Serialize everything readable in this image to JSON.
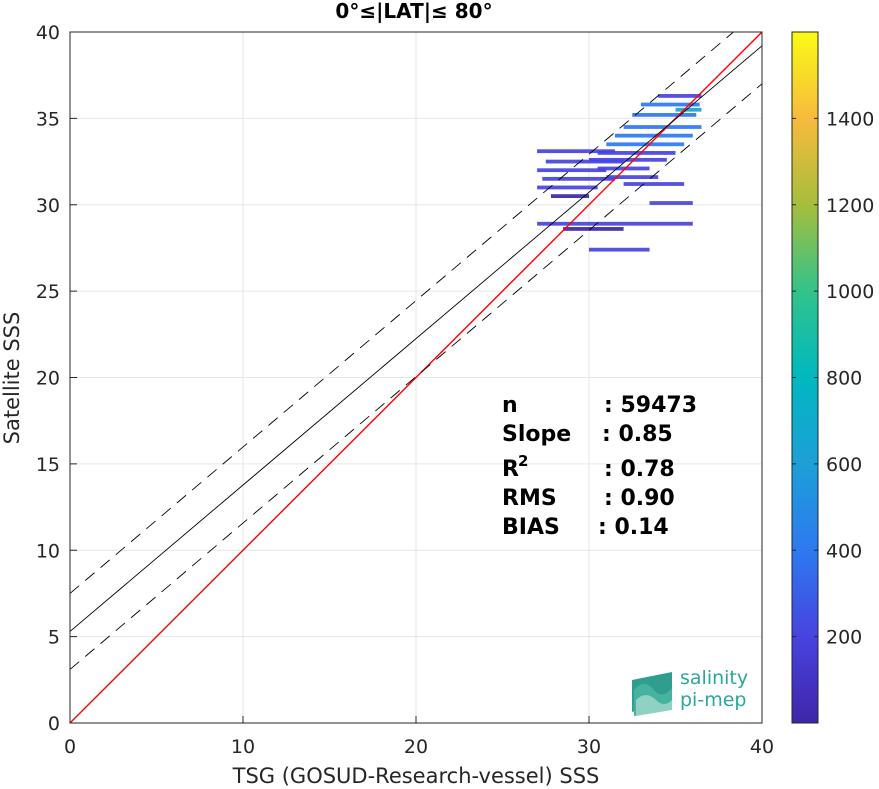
{
  "chart_data": {
    "type": "heatmap",
    "title": "0°≤|LAT|≤ 80°",
    "xlabel": "TSG (GOSUD-Research-vessel) SSS",
    "ylabel": "Satellite SSS",
    "xlim": [
      0,
      40
    ],
    "ylim": [
      0,
      40
    ],
    "xticks": [
      0,
      10,
      20,
      30,
      40
    ],
    "yticks": [
      0,
      5,
      10,
      15,
      20,
      25,
      30,
      35,
      40
    ],
    "grid": true,
    "lines": [
      {
        "name": "identity",
        "color": "#ff0000",
        "style": "solid",
        "x": [
          0,
          40
        ],
        "y": [
          0,
          40
        ]
      },
      {
        "name": "fit",
        "color": "#000000",
        "style": "solid",
        "x": [
          0,
          40
        ],
        "y": [
          5.3,
          39.2
        ]
      },
      {
        "name": "fit-upper",
        "color": "#000000",
        "style": "dashed",
        "x": [
          0,
          40
        ],
        "y": [
          7.5,
          41.4
        ]
      },
      {
        "name": "fit-lower",
        "color": "#000000",
        "style": "dashed",
        "x": [
          0,
          40
        ],
        "y": [
          3.1,
          37.0
        ]
      }
    ],
    "density_cells": [
      {
        "x": [
          27.0,
          31.5
        ],
        "y": 33.1,
        "level": 0.05
      },
      {
        "x": [
          27.5,
          32.0
        ],
        "y": 32.5,
        "level": 0.07
      },
      {
        "x": [
          27.0,
          31.0
        ],
        "y": 32.0,
        "level": 0.06
      },
      {
        "x": [
          27.3,
          31.5
        ],
        "y": 31.5,
        "level": 0.05
      },
      {
        "x": [
          27.0,
          30.5
        ],
        "y": 31.0,
        "level": 0.04
      },
      {
        "x": [
          27.8,
          30.0
        ],
        "y": 30.5,
        "level": 0.03
      },
      {
        "x": [
          27.0,
          36.0
        ],
        "y": 28.9,
        "level": 0.06
      },
      {
        "x": [
          28.5,
          32.0
        ],
        "y": 28.6,
        "level": 0.03
      },
      {
        "x": [
          30.0,
          33.5
        ],
        "y": 27.4,
        "level": 0.04
      },
      {
        "x": [
          32.0,
          36.5
        ],
        "y": 34.5,
        "level": 0.12
      },
      {
        "x": [
          32.5,
          36.2
        ],
        "y": 35.2,
        "level": 0.15
      },
      {
        "x": [
          33.0,
          36.4
        ],
        "y": 35.8,
        "level": 0.13
      },
      {
        "x": [
          34.0,
          36.5
        ],
        "y": 36.3,
        "level": 0.1
      },
      {
        "x": [
          31.5,
          36.0
        ],
        "y": 34.0,
        "level": 0.14
      },
      {
        "x": [
          31.0,
          35.5
        ],
        "y": 33.5,
        "level": 0.12
      },
      {
        "x": [
          30.5,
          35.0
        ],
        "y": 33.0,
        "level": 0.1
      },
      {
        "x": [
          30.0,
          34.5
        ],
        "y": 32.6,
        "level": 0.09
      },
      {
        "x": [
          30.5,
          33.5
        ],
        "y": 32.1,
        "level": 0.08
      },
      {
        "x": [
          31.0,
          34.0
        ],
        "y": 31.6,
        "level": 0.07
      },
      {
        "x": [
          32.0,
          35.5
        ],
        "y": 31.2,
        "level": 0.05
      },
      {
        "x": [
          33.5,
          36.0
        ],
        "y": 30.1,
        "level": 0.04
      },
      {
        "x": [
          35.0,
          36.5
        ],
        "y": 35.5,
        "level": 0.25
      }
    ],
    "colorbar": {
      "min": 0,
      "max": 1600,
      "ticks": [
        200,
        400,
        600,
        800,
        1000,
        1200,
        1400
      ],
      "colormap": "parula"
    },
    "stats": {
      "n_label": "n",
      "n_value": ": 59473",
      "slope_label": "Slope",
      "slope_value": ": 0.85",
      "r2_label": "R",
      "r2_sup": "2",
      "r2_value": ": 0.78",
      "rms_label": "RMS",
      "rms_value": ": 0.90",
      "bias_label": "BIAS",
      "bias_value": ": 0.14"
    }
  },
  "logo": {
    "line1": "salinity",
    "line2": "pi-mep"
  }
}
